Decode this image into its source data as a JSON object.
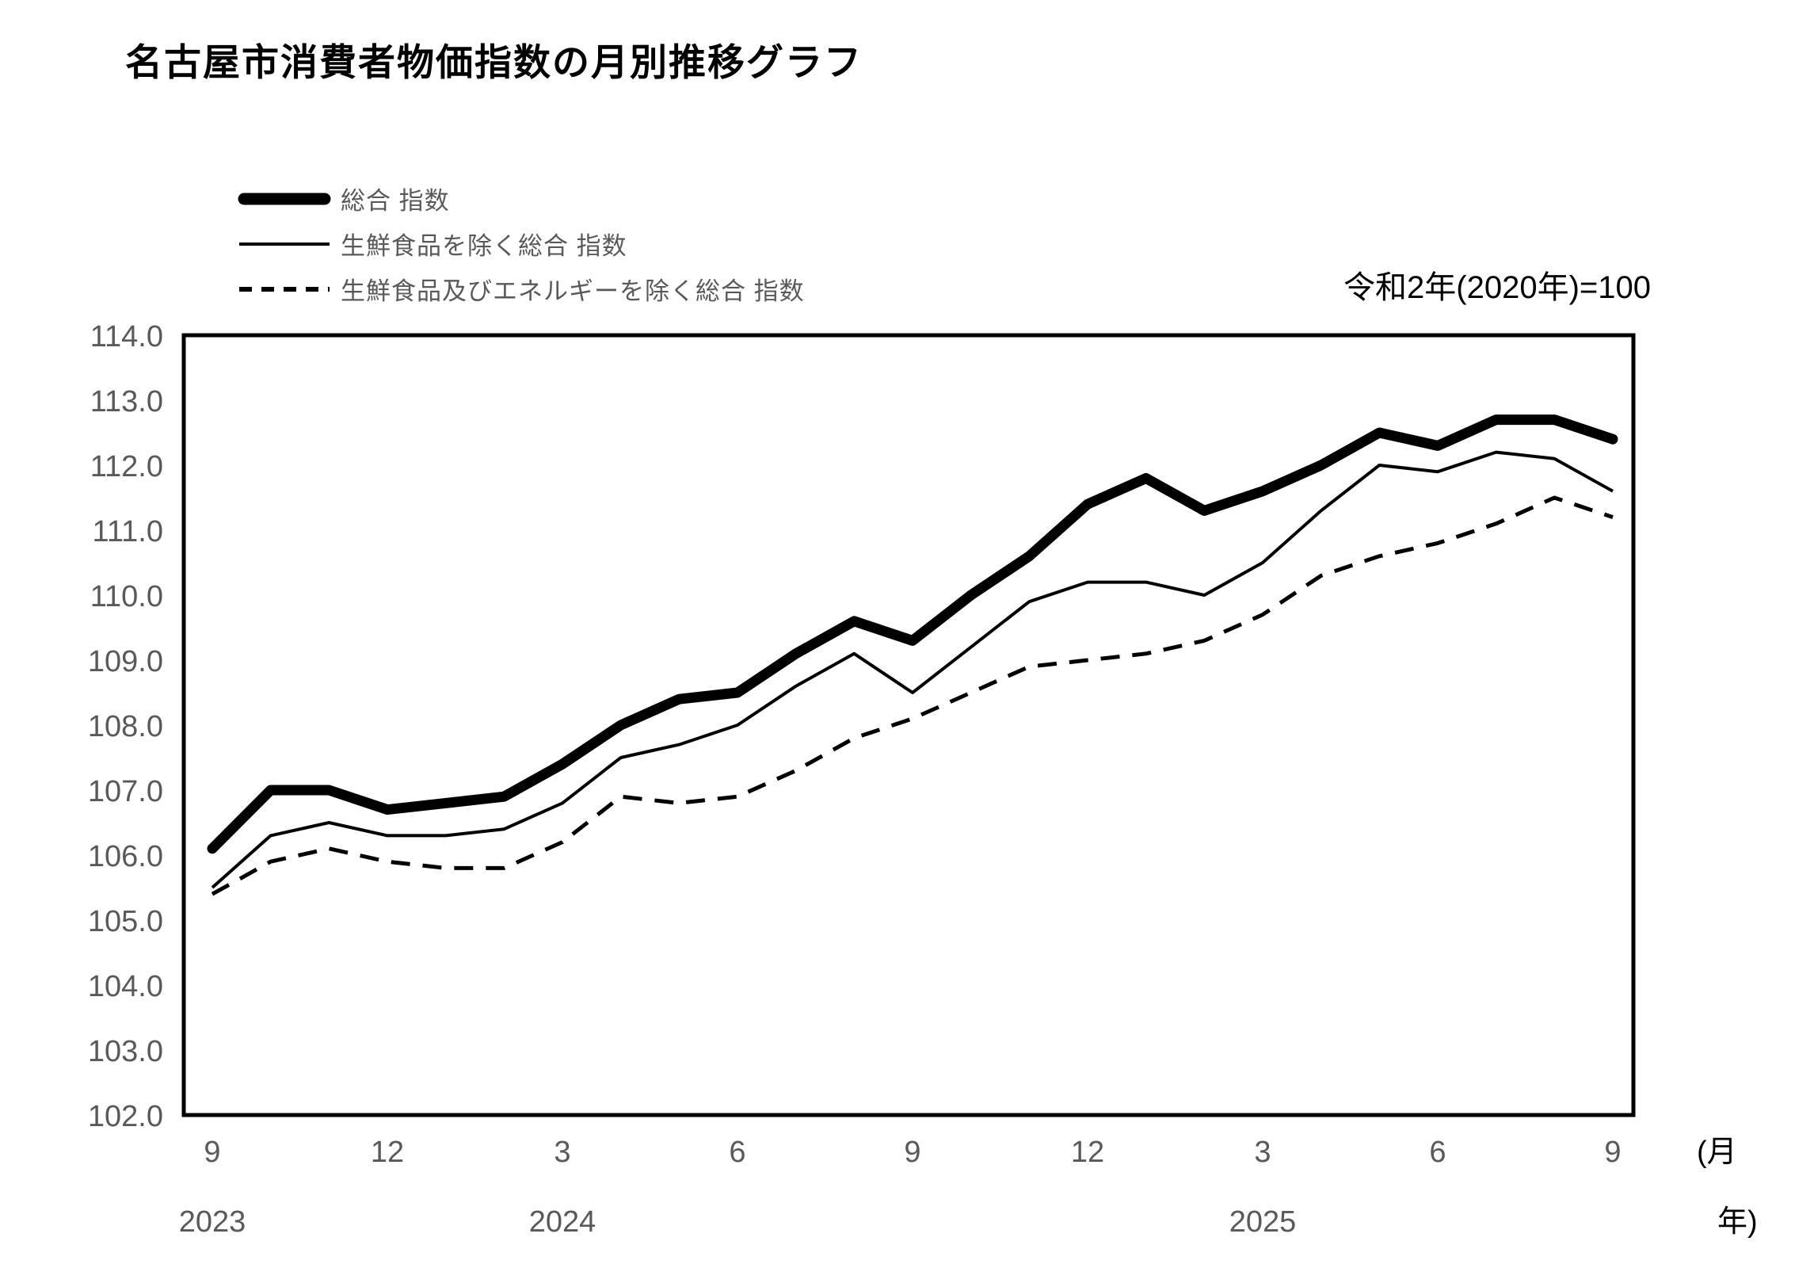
{
  "page": {
    "title": "名古屋市消費者物価指数の月別推移グラフ",
    "base_note": "令和2年(2020年)=100"
  },
  "legend": {
    "items": [
      {
        "label": "総合 指数",
        "style": "thick-solid"
      },
      {
        "label": "生鮮食品を除く総合 指数",
        "style": "thin-solid"
      },
      {
        "label": "生鮮食品及びエネルギーを除く総合 指数",
        "style": "dashed"
      }
    ]
  },
  "axes": {
    "y_ticks": [
      "114.0",
      "113.0",
      "112.0",
      "111.0",
      "110.0",
      "109.0",
      "108.0",
      "107.0",
      "106.0",
      "105.0",
      "104.0",
      "103.0",
      "102.0"
    ],
    "x_month_ticks": [
      {
        "index": 0,
        "label": "9"
      },
      {
        "index": 3,
        "label": "12"
      },
      {
        "index": 6,
        "label": "3"
      },
      {
        "index": 9,
        "label": "6"
      },
      {
        "index": 12,
        "label": "9"
      },
      {
        "index": 15,
        "label": "12"
      },
      {
        "index": 18,
        "label": "3"
      },
      {
        "index": 21,
        "label": "6"
      },
      {
        "index": 24,
        "label": "9"
      }
    ],
    "x_year_labels": [
      {
        "index": 0,
        "label": "2023"
      },
      {
        "index": 6,
        "label": "2024"
      },
      {
        "index": 18,
        "label": "2025"
      }
    ],
    "unit_label_month": "(月",
    "unit_label_year": "年)"
  },
  "chart_data": {
    "type": "line",
    "title": "名古屋市消費者物価指数の月別推移グラフ",
    "note": "令和2年(2020年)=100",
    "xlabel": "(月 年)",
    "ylabel": "",
    "ylim": [
      102.0,
      114.0
    ],
    "y_step": 1.0,
    "grid": false,
    "legend_position": "top-left",
    "line_color": "#000000",
    "x": [
      "2023-09",
      "2023-10",
      "2023-11",
      "2023-12",
      "2024-01",
      "2024-02",
      "2024-03",
      "2024-04",
      "2024-05",
      "2024-06",
      "2024-07",
      "2024-08",
      "2024-09",
      "2024-10",
      "2024-11",
      "2024-12",
      "2025-01",
      "2025-02",
      "2025-03",
      "2025-04",
      "2025-05",
      "2025-06",
      "2025-07",
      "2025-08",
      "2025-09"
    ],
    "series": [
      {
        "name": "総合 指数",
        "line": "thick-solid",
        "values": [
          106.1,
          107.0,
          107.0,
          106.7,
          106.8,
          106.9,
          107.4,
          108.0,
          108.4,
          108.5,
          109.1,
          109.6,
          109.3,
          110.0,
          110.6,
          111.4,
          111.8,
          111.3,
          111.6,
          112.0,
          112.5,
          112.3,
          112.7,
          112.7,
          112.4
        ]
      },
      {
        "name": "生鮮食品を除く総合 指数",
        "line": "thin-solid",
        "values": [
          105.5,
          106.3,
          106.5,
          106.3,
          106.3,
          106.4,
          106.8,
          107.5,
          107.7,
          108.0,
          108.6,
          109.1,
          108.5,
          109.2,
          109.9,
          110.2,
          110.2,
          110.0,
          110.5,
          111.3,
          112.0,
          111.9,
          112.2,
          112.1,
          111.6
        ]
      },
      {
        "name": "生鮮食品及びエネルギーを除く総合 指数",
        "line": "dashed",
        "values": [
          105.4,
          105.9,
          106.1,
          105.9,
          105.8,
          105.8,
          106.2,
          106.9,
          106.8,
          106.9,
          107.3,
          107.8,
          108.1,
          108.5,
          108.9,
          109.0,
          109.1,
          109.3,
          109.7,
          110.3,
          110.6,
          110.8,
          111.1,
          111.5,
          111.2
        ]
      }
    ]
  }
}
